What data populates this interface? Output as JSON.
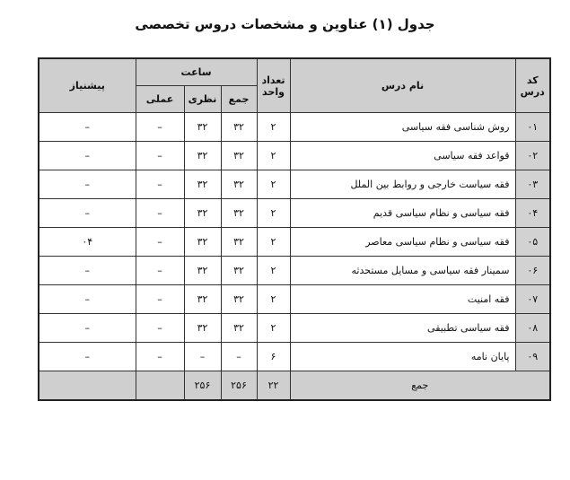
{
  "title": "جدول (۱) عناوين و مشخصات دروس تخصصی",
  "headers": {
    "code": "کد درس",
    "name": "نام درس",
    "units": "تعداد واحد",
    "hours": "ساعت",
    "total_hours": "جمع",
    "theory": "نظری",
    "practical": "عملی",
    "prerequisite": "پیشنیاز"
  },
  "rows": [
    {
      "code": "۰۱",
      "name": "روش شناسی فقه سیاسی",
      "units": "۲",
      "total": "۳۲",
      "theory": "۳۲",
      "practical": "–",
      "prereq": "–"
    },
    {
      "code": "۰۲",
      "name": "قواعد فقه سیاسی",
      "units": "۲",
      "total": "۳۲",
      "theory": "۳۲",
      "practical": "–",
      "prereq": "–"
    },
    {
      "code": "۰۳",
      "name": "فقه سیاست خارجی و روابط بین الملل",
      "units": "۲",
      "total": "۳۲",
      "theory": "۳۲",
      "practical": "–",
      "prereq": "–"
    },
    {
      "code": "۰۴",
      "name": "فقه سیاسی و نظام سیاسی قدیم",
      "units": "۲",
      "total": "۳۲",
      "theory": "۳۲",
      "practical": "–",
      "prereq": "–"
    },
    {
      "code": "۰۵",
      "name": "فقه سیاسی و نظام سیاسی معاصر",
      "units": "۲",
      "total": "۳۲",
      "theory": "۳۲",
      "practical": "–",
      "prereq": "۰۴"
    },
    {
      "code": "۰۶",
      "name": "سمینار فقه سیاسی و مسایل مستحدثه",
      "units": "۲",
      "total": "۳۲",
      "theory": "۳۲",
      "practical": "–",
      "prereq": "–"
    },
    {
      "code": "۰۷",
      "name": "فقه امنیت",
      "units": "۲",
      "total": "۳۲",
      "theory": "۳۲",
      "practical": "–",
      "prereq": "–"
    },
    {
      "code": "۰۸",
      "name": "فقه سیاسی تطبیقی",
      "units": "۲",
      "total": "۳۲",
      "theory": "۳۲",
      "practical": "–",
      "prereq": "–"
    },
    {
      "code": "۰۹",
      "name": "پایان نامه",
      "units": "۶",
      "total": "–",
      "theory": "–",
      "practical": "–",
      "prereq": "–"
    }
  ],
  "totals": {
    "label": "جمع",
    "units": "۲۲",
    "total": "۲۵۶",
    "theory": "۲۵۶",
    "practical": "",
    "prereq": ""
  }
}
